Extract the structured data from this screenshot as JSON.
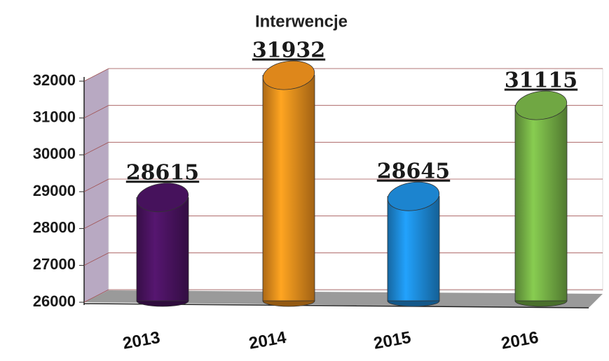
{
  "chart_data": {
    "type": "bar",
    "title": "Interwencje",
    "categories": [
      "2013",
      "2014",
      "2015",
      "2016"
    ],
    "values": [
      28615,
      31932,
      28645,
      31115
    ],
    "colors": [
      "#4e1466",
      "#f7961e",
      "#1f93e6",
      "#7cba4a"
    ],
    "ylim": [
      26000,
      32000
    ],
    "yticks": [
      26000,
      27000,
      28000,
      29000,
      30000,
      31000,
      32000
    ],
    "grid": true
  }
}
